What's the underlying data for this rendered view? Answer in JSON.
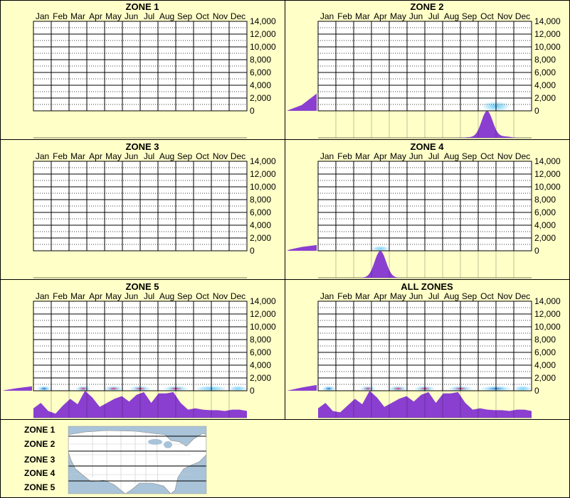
{
  "colors": {
    "background": "#ffffc8",
    "grid": "#000000",
    "profile_fill": "#8a3fd0",
    "heat_low": "#4fc3f7",
    "heat_mid": "#1565c0",
    "heat_high": "#e91e63",
    "map_water": "#a9c3d8",
    "map_land": "#ffffff"
  },
  "chart_data": [
    {
      "type": "heatmap",
      "title": "ZONE 1",
      "months": [
        "Jan",
        "Feb",
        "Mar",
        "Apr",
        "May",
        "Jun",
        "Jul",
        "Aug",
        "Sep",
        "Oct",
        "Nov",
        "Dec"
      ],
      "y_ticks": [
        "14,000",
        "12,000",
        "10,000",
        "8,000",
        "6,000",
        "4,000",
        "2,000",
        "0"
      ],
      "ylim": [
        0,
        14000
      ],
      "elevation_profile": [],
      "monthly_profile": [],
      "density": []
    },
    {
      "type": "heatmap",
      "title": "ZONE 2",
      "months": [
        "Jan",
        "Feb",
        "Mar",
        "Apr",
        "May",
        "Jun",
        "Jul",
        "Aug",
        "Sep",
        "Oct",
        "Nov",
        "Dec"
      ],
      "y_ticks": [
        "14,000",
        "12,000",
        "10,000",
        "8,000",
        "6,000",
        "4,000",
        "2,000",
        "0"
      ],
      "ylim": [
        0,
        14000
      ],
      "elevation_profile": [
        [
          0,
          0
        ],
        [
          0.1,
          200
        ],
        [
          0.5,
          900
        ],
        [
          1.0,
          2700
        ]
      ],
      "monthly_profile": [
        0,
        0,
        0,
        0,
        0,
        0,
        0,
        0,
        0.02,
        1.0,
        0.05,
        0
      ],
      "density": [
        {
          "month": 10.5,
          "elevation": 700,
          "intensity": 0.45,
          "spread_x": 0.8,
          "spread_y": 800
        }
      ]
    },
    {
      "type": "heatmap",
      "title": "ZONE 3",
      "months": [
        "Jan",
        "Feb",
        "Mar",
        "Apr",
        "May",
        "Jun",
        "Jul",
        "Aug",
        "Sep",
        "Oct",
        "Nov",
        "Dec"
      ],
      "y_ticks": [
        "14,000",
        "12,000",
        "10,000",
        "8,000",
        "6,000",
        "4,000",
        "2,000",
        "0"
      ],
      "ylim": [
        0,
        14000
      ],
      "elevation_profile": [],
      "monthly_profile": [],
      "density": []
    },
    {
      "type": "heatmap",
      "title": "ZONE 4",
      "months": [
        "Jan",
        "Feb",
        "Mar",
        "Apr",
        "May",
        "Jun",
        "Jul",
        "Aug",
        "Sep",
        "Oct",
        "Nov",
        "Dec"
      ],
      "y_ticks": [
        "14,000",
        "12,000",
        "10,000",
        "8,000",
        "6,000",
        "4,000",
        "2,000",
        "0"
      ],
      "ylim": [
        0,
        14000
      ],
      "elevation_profile": [
        [
          0,
          0
        ],
        [
          0.1,
          200
        ],
        [
          0.5,
          600
        ],
        [
          1.0,
          900
        ]
      ],
      "monthly_profile": [
        0,
        0,
        0,
        1.0,
        0,
        0,
        0,
        0,
        0,
        0,
        0,
        0
      ],
      "density": [
        {
          "month": 4.0,
          "elevation": 300,
          "intensity": 0.35,
          "spread_x": 0.5,
          "spread_y": 350
        }
      ]
    },
    {
      "type": "heatmap",
      "title": "ZONE 5",
      "months": [
        "Jan",
        "Feb",
        "Mar",
        "Apr",
        "May",
        "Jun",
        "Jul",
        "Aug",
        "Sep",
        "Oct",
        "Nov",
        "Dec"
      ],
      "y_ticks": [
        "14,000",
        "12,000",
        "10,000",
        "8,000",
        "6,000",
        "4,000",
        "2,000",
        "0"
      ],
      "ylim": [
        0,
        14000
      ],
      "elevation_profile": [
        [
          0,
          0
        ],
        [
          0.1,
          100
        ],
        [
          0.5,
          400
        ],
        [
          1.0,
          700
        ]
      ],
      "monthly_profile": [
        0.35,
        0.55,
        0.25,
        0.15,
        0.45,
        0.7,
        0.5,
        1.0,
        0.75,
        0.4,
        0.55,
        0.7,
        0.8,
        0.6,
        0.85,
        0.95,
        0.55,
        0.9,
        0.9,
        0.95,
        0.55,
        0.3,
        0.35,
        0.3,
        0.28,
        0.28,
        0.25,
        0.3,
        0.3,
        0.25
      ],
      "density": [
        {
          "month": 1.1,
          "elevation": 200,
          "intensity": 0.55,
          "spread_x": 0.4,
          "spread_y": 250
        },
        {
          "month": 3.3,
          "elevation": 200,
          "intensity": 0.8,
          "spread_x": 0.45,
          "spread_y": 250
        },
        {
          "month": 5.0,
          "elevation": 200,
          "intensity": 0.95,
          "spread_x": 0.55,
          "spread_y": 250
        },
        {
          "month": 6.5,
          "elevation": 200,
          "intensity": 0.9,
          "spread_x": 0.6,
          "spread_y": 250
        },
        {
          "month": 8.5,
          "elevation": 200,
          "intensity": 1.0,
          "spread_x": 0.7,
          "spread_y": 250
        },
        {
          "month": 10.5,
          "elevation": 200,
          "intensity": 0.45,
          "spread_x": 0.9,
          "spread_y": 250
        },
        {
          "month": 12.0,
          "elevation": 200,
          "intensity": 0.35,
          "spread_x": 0.5,
          "spread_y": 250
        }
      ]
    },
    {
      "type": "heatmap",
      "title": "ALL ZONES",
      "months": [
        "Jan",
        "Feb",
        "Mar",
        "Apr",
        "May",
        "Jun",
        "Jul",
        "Aug",
        "Sep",
        "Oct",
        "Nov",
        "Dec"
      ],
      "y_ticks": [
        "14,000",
        "12,000",
        "10,000",
        "8,000",
        "6,000",
        "4,000",
        "2,000",
        "0"
      ],
      "ylim": [
        0,
        14000
      ],
      "elevation_profile": [
        [
          0,
          0
        ],
        [
          0.1,
          100
        ],
        [
          0.5,
          500
        ],
        [
          1.0,
          900
        ]
      ],
      "monthly_profile": [
        0.35,
        0.55,
        0.25,
        0.2,
        0.45,
        0.7,
        0.5,
        1.0,
        0.75,
        0.4,
        0.55,
        0.7,
        0.8,
        0.6,
        0.85,
        0.95,
        0.55,
        0.9,
        0.9,
        0.95,
        0.55,
        0.3,
        0.35,
        0.3,
        0.28,
        0.28,
        0.25,
        0.3,
        0.3,
        0.25
      ],
      "density": [
        {
          "month": 1.1,
          "elevation": 200,
          "intensity": 0.55,
          "spread_x": 0.4,
          "spread_y": 250
        },
        {
          "month": 3.3,
          "elevation": 200,
          "intensity": 0.8,
          "spread_x": 0.45,
          "spread_y": 250
        },
        {
          "month": 5.0,
          "elevation": 200,
          "intensity": 0.95,
          "spread_x": 0.55,
          "spread_y": 250
        },
        {
          "month": 6.5,
          "elevation": 200,
          "intensity": 0.9,
          "spread_x": 0.6,
          "spread_y": 250
        },
        {
          "month": 8.5,
          "elevation": 200,
          "intensity": 1.0,
          "spread_x": 0.7,
          "spread_y": 250
        },
        {
          "month": 10.5,
          "elevation": 200,
          "intensity": 0.5,
          "spread_x": 0.9,
          "spread_y": 250
        },
        {
          "month": 12.0,
          "elevation": 200,
          "intensity": 0.35,
          "spread_x": 0.5,
          "spread_y": 250
        }
      ]
    }
  ],
  "legend": {
    "zones": [
      "ZONE 1",
      "ZONE 2",
      "ZONE 3",
      "ZONE 4",
      "ZONE 5"
    ]
  }
}
